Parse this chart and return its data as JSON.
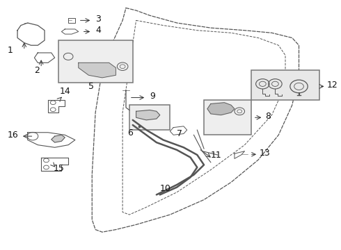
{
  "bg_color": "#ffffff",
  "fig_width": 4.9,
  "fig_height": 3.6,
  "dpi": 100,
  "line_color": "#555555",
  "door_outer": {
    "x": [
      0.37,
      0.4,
      0.44,
      0.52,
      0.62,
      0.72,
      0.8,
      0.86,
      0.88,
      0.88,
      0.86,
      0.82,
      0.76,
      0.68,
      0.6,
      0.5,
      0.4,
      0.34,
      0.3,
      0.28,
      0.27,
      0.27,
      0.28,
      0.3,
      0.33,
      0.36,
      0.37
    ],
    "y": [
      0.97,
      0.96,
      0.94,
      0.91,
      0.89,
      0.88,
      0.87,
      0.85,
      0.82,
      0.7,
      0.58,
      0.46,
      0.36,
      0.27,
      0.2,
      0.14,
      0.1,
      0.08,
      0.07,
      0.08,
      0.12,
      0.3,
      0.55,
      0.72,
      0.83,
      0.92,
      0.97
    ]
  },
  "door_inner": {
    "x": [
      0.4,
      0.48,
      0.58,
      0.68,
      0.76,
      0.82,
      0.84,
      0.84,
      0.8,
      0.72,
      0.62,
      0.52,
      0.43,
      0.38,
      0.36,
      0.36,
      0.4
    ],
    "y": [
      0.92,
      0.9,
      0.88,
      0.87,
      0.85,
      0.82,
      0.78,
      0.66,
      0.54,
      0.42,
      0.32,
      0.23,
      0.17,
      0.14,
      0.15,
      0.55,
      0.92
    ]
  },
  "label_fontsize": 9,
  "arrow_color": "#333333"
}
